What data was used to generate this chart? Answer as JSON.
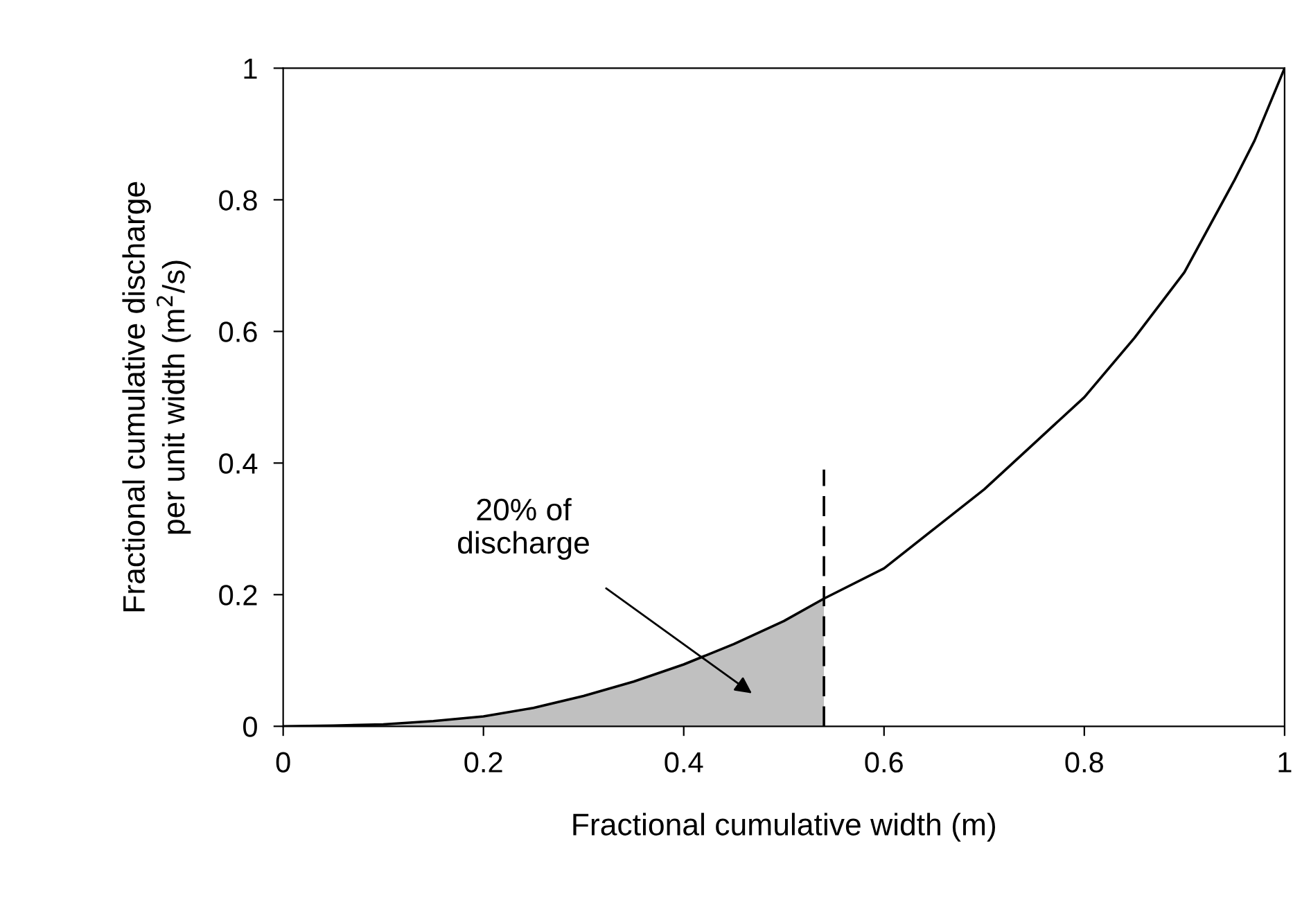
{
  "chart_data": {
    "type": "line",
    "xlabel": "Fractional cumulative width (m)",
    "ylabel": "Fractional cumulative discharge\nper unit width (m$^{2}$/s)",
    "series": [
      {
        "type": "area",
        "color": "#c0c0c0",
        "x": [
          0,
          0.05,
          0.1,
          0.15,
          0.2,
          0.25,
          0.3,
          0.35,
          0.4,
          0.45,
          0.5,
          0.54
        ],
        "values": [
          0,
          0.001,
          0.003,
          0.008,
          0.015,
          0.028,
          0.046,
          0.068,
          0.094,
          0.125,
          0.16,
          0.194
        ]
      },
      {
        "color": "#000000",
        "x": [
          0,
          0.05,
          0.1,
          0.15,
          0.2,
          0.25,
          0.3,
          0.35,
          0.4,
          0.45,
          0.5,
          0.54,
          0.6,
          0.65,
          0.7,
          0.75,
          0.8,
          0.85,
          0.9,
          0.95,
          0.97,
          1
        ],
        "values": [
          0,
          0.001,
          0.003,
          0.008,
          0.015,
          0.028,
          0.046,
          0.068,
          0.094,
          0.125,
          0.16,
          0.194,
          0.24,
          0.3,
          0.36,
          0.43,
          0.5,
          0.59,
          0.69,
          0.83,
          0.89,
          1
        ]
      },
      {
        "type": "line",
        "color": "#000000",
        "line_style": "dashed",
        "x": [
          0.54,
          0.54
        ],
        "values": [
          0,
          0.39
        ]
      }
    ],
    "annotations": [
      "20% of\ndischarge"
    ],
    "xlim": [
      0,
      1
    ],
    "ylim": [
      0,
      1
    ],
    "xticks": [
      0,
      0.2,
      0.4,
      0.6,
      0.8,
      1
    ],
    "yticks": [
      0,
      0.2,
      0.4,
      0.6,
      0.8,
      1
    ],
    "grid": false,
    "legend": false
  }
}
